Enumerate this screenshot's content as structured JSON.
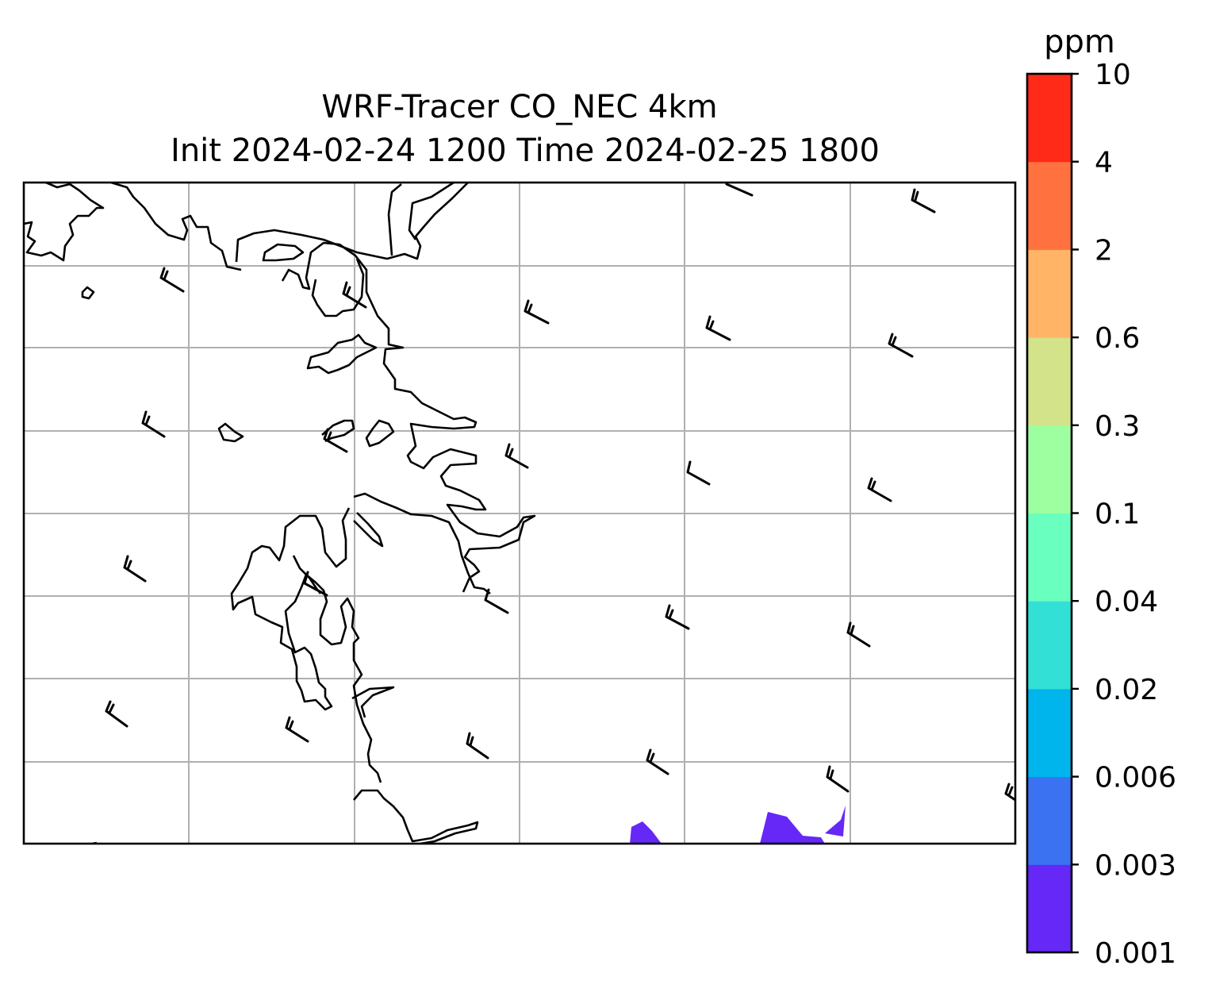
{
  "title_line1": "WRF-Tracer CO_NEC 4km",
  "title_line2": "Init 2024-02-24 1200 Time 2024-02-25 1800",
  "colorbar": {
    "unit": "ppm",
    "levels": [
      "0.001",
      "0.003",
      "0.006",
      "0.02",
      "0.04",
      "0.1",
      "0.3",
      "0.6",
      "2",
      "4",
      "10"
    ],
    "colors": [
      "#6528f7",
      "#3a72f2",
      "#00b4ec",
      "#33e0d6",
      "#69ffbf",
      "#9dffa0",
      "#d2e38a",
      "#ffb466",
      "#ff7240",
      "#ff2a18"
    ]
  },
  "map": {
    "tracer_color": "#6528f7",
    "gridline_color": "#b0b0b0",
    "coastline_color": "#000000",
    "wind_barbs": "light winds from the northwest across the domain"
  }
}
